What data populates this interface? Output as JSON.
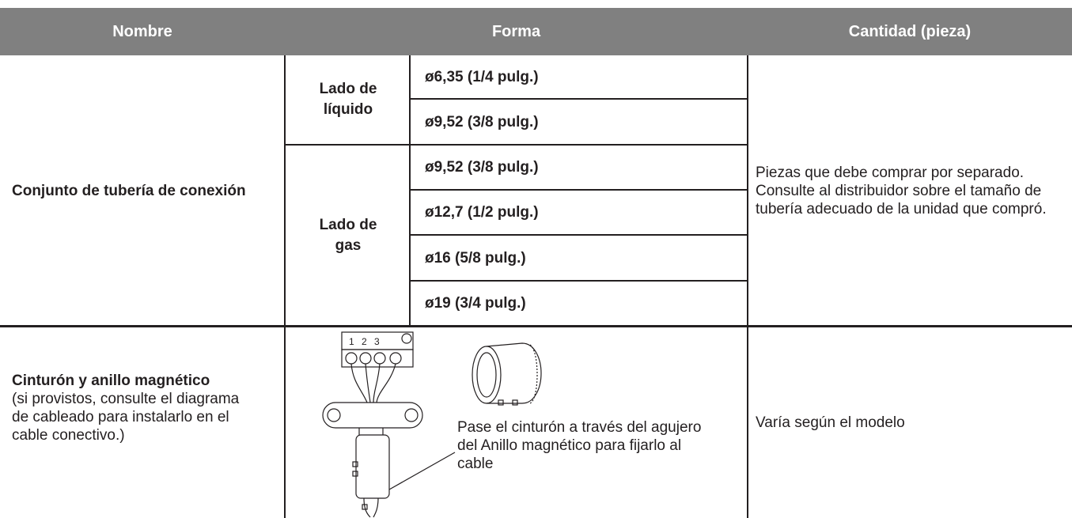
{
  "table": {
    "header": [
      "Nombre",
      "Forma",
      "Cantidad (pieza)"
    ],
    "rows": [
      {
        "name": "Conjunto de tubería de conexión",
        "sides": [
          {
            "label": "Lado de líquido",
            "sizes": [
              "ø6,35 (1/4 pulg.)",
              "ø9,52 (3/8 pulg.)"
            ]
          },
          {
            "label": "Lado de gas",
            "sizes": [
              "ø9,52 (3/8 pulg.)",
              "ø12,7 (1/2 pulg.)",
              "ø16 (5/8 pulg.)",
              "ø19 (3/4 pulg.)"
            ]
          }
        ],
        "quantity": "Piezas que debe comprar por separado. Consulte al distribuidor sobre el tamaño de tubería adecuado de la unidad que compró."
      },
      {
        "name": "Cinturón y anillo magnético",
        "note": "(si provistos, consulte el diagrama de cableado para instalarlo en el cable conectivo.)",
        "diagram": {
          "terminal_labels": [
            "1",
            "2",
            "3"
          ],
          "caption": "Pase el cinturón a través del agujero del Anillo magnético para fijarlo al cable"
        },
        "quantity": "Varía según el modelo"
      }
    ]
  }
}
